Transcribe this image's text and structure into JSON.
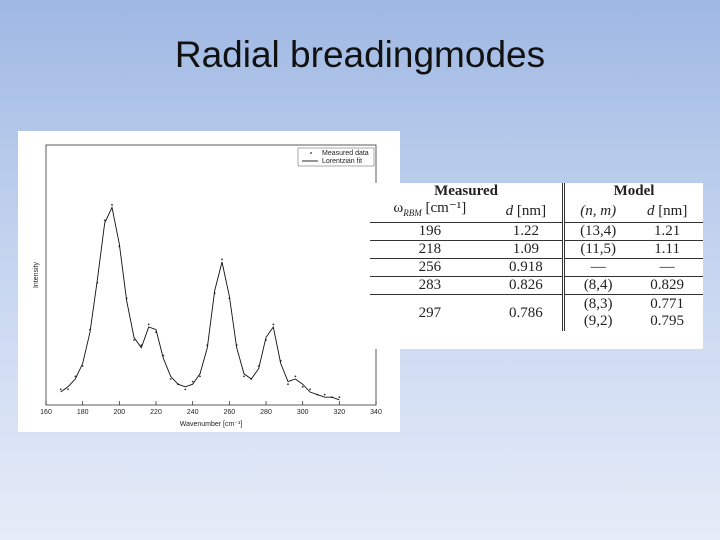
{
  "title": "Radial breadingmodes",
  "chart_data": {
    "type": "line",
    "xlabel": "Wavenumber [cm⁻¹]",
    "ylabel": "Intensity",
    "x": [
      168,
      172,
      176,
      180,
      184,
      188,
      192,
      196,
      200,
      204,
      208,
      212,
      216,
      220,
      224,
      228,
      232,
      236,
      240,
      244,
      248,
      252,
      256,
      260,
      264,
      268,
      272,
      276,
      280,
      284,
      288,
      292,
      296,
      300,
      304,
      308,
      312,
      316,
      320
    ],
    "series": [
      {
        "name": "Measured data",
        "color": "#333333",
        "marker": "dot",
        "values": [
          0.06,
          0.06,
          0.11,
          0.15,
          0.29,
          0.47,
          0.71,
          0.77,
          0.61,
          0.41,
          0.25,
          0.23,
          0.31,
          0.28,
          0.19,
          0.1,
          0.08,
          0.06,
          0.09,
          0.11,
          0.23,
          0.43,
          0.56,
          0.41,
          0.23,
          0.11,
          0.1,
          0.15,
          0.25,
          0.31,
          0.17,
          0.08,
          0.11,
          0.07,
          0.06,
          0.04,
          0.04,
          0.03,
          0.03
        ]
      },
      {
        "name": "Lorentzian fit",
        "color": "#111111",
        "marker": "line",
        "values": [
          0.05,
          0.07,
          0.1,
          0.16,
          0.28,
          0.48,
          0.7,
          0.76,
          0.62,
          0.4,
          0.26,
          0.22,
          0.3,
          0.29,
          0.18,
          0.11,
          0.08,
          0.07,
          0.08,
          0.12,
          0.22,
          0.44,
          0.55,
          0.42,
          0.22,
          0.12,
          0.1,
          0.14,
          0.26,
          0.3,
          0.16,
          0.09,
          0.1,
          0.08,
          0.05,
          0.04,
          0.03,
          0.03,
          0.02
        ]
      }
    ],
    "xlim": [
      160,
      340
    ],
    "xticks": [
      160,
      180,
      200,
      220,
      240,
      260,
      280,
      300,
      320,
      340
    ],
    "ylim": [
      0,
      1
    ],
    "legend": "top-right"
  },
  "table": {
    "groups": [
      "Measured",
      "Model"
    ],
    "header": {
      "omega": "ω",
      "sub": "RBM",
      "unit": " [cm⁻¹]",
      "d1": "d",
      "d1unit": " [nm]",
      "nm": "(n, m)",
      "d2": "d",
      "d2unit": " [nm]"
    },
    "rows": [
      [
        "196",
        "1.22",
        [
          "(13,4)"
        ],
        [
          "1.21"
        ]
      ],
      [
        "218",
        "1.09",
        [
          "(11,5)"
        ],
        [
          "1.11"
        ]
      ],
      [
        "256",
        "0.918",
        [
          "—"
        ],
        [
          "—"
        ]
      ],
      [
        "283",
        "0.826",
        [
          "(8,4)"
        ],
        [
          "0.829"
        ]
      ],
      [
        "297",
        "0.786",
        [
          "(8,3)",
          "(9,2)"
        ],
        [
          "0.771",
          "0.795"
        ]
      ]
    ]
  }
}
